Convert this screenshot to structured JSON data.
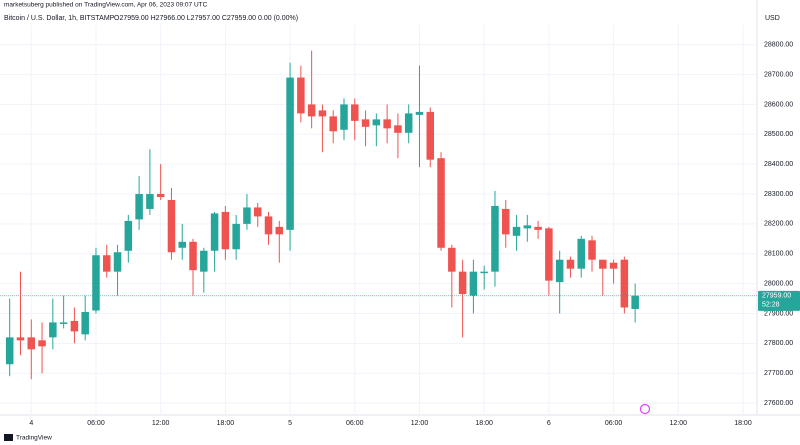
{
  "chart_data": {
    "type": "candlestick",
    "publisher": "marketsuberg published on TradingView.com, Apr 06, 2023 09:07 UTC",
    "title": "Bitcoin / U.S. Dollar, 1h, BITSTAMP",
    "legend_ohlc": "O27959.00 H27966.00 L27957.00 C27959.00 0.00 (0.00%)",
    "currency": "USD",
    "brand": "TradingView",
    "up_color": "#26a69a",
    "down_color": "#ef5350",
    "last_price": {
      "value": 27959,
      "label": "27959.00"
    },
    "countdown": "52:28",
    "xlim": [
      -2.9,
      67.3
    ],
    "ylim": [
      27560,
      28866
    ],
    "xticks": [
      {
        "value": 0,
        "label": "4"
      },
      {
        "value": 6,
        "label": "06:00"
      },
      {
        "value": 12,
        "label": "12:00"
      },
      {
        "value": 18,
        "label": "18:00"
      },
      {
        "value": 24,
        "label": "5"
      },
      {
        "value": 30,
        "label": "06:00"
      },
      {
        "value": 36,
        "label": "12:00"
      },
      {
        "value": 42,
        "label": "18:00"
      },
      {
        "value": 48,
        "label": "6"
      },
      {
        "value": 54,
        "label": "06:00"
      },
      {
        "value": 60,
        "label": "12:00"
      },
      {
        "value": 66,
        "label": "18:00"
      }
    ],
    "yticks": [
      {
        "value": 27600,
        "label": "27600.00"
      },
      {
        "value": 27700,
        "label": "27700.00"
      },
      {
        "value": 27800,
        "label": "27800.00"
      },
      {
        "value": 27900,
        "label": "27900.00"
      },
      {
        "value": 28000,
        "label": "28000.00"
      },
      {
        "value": 28100,
        "label": "28100.00"
      },
      {
        "value": 28200,
        "label": "28200.00"
      },
      {
        "value": 28300,
        "label": "28300.00"
      },
      {
        "value": 28400,
        "label": "28400.00"
      },
      {
        "value": 28500,
        "label": "28500.00"
      },
      {
        "value": 28600,
        "label": "28600.00"
      },
      {
        "value": 28700,
        "label": "28700.00"
      },
      {
        "value": 28800,
        "label": "28800.00"
      }
    ],
    "x": [
      -2,
      -1,
      0,
      1,
      2,
      3,
      4,
      5,
      6,
      7,
      8,
      9,
      10,
      11,
      12,
      13,
      14,
      15,
      16,
      17,
      18,
      19,
      20,
      21,
      22,
      23,
      24,
      25,
      26,
      27,
      28,
      29,
      30,
      31,
      32,
      33,
      34,
      35,
      36,
      37,
      38,
      39,
      40,
      41,
      42,
      43,
      44,
      45,
      46,
      47,
      48,
      49,
      50,
      51,
      52,
      53,
      54,
      55,
      56
    ],
    "open": [
      27730,
      27820,
      27820,
      27810,
      27820,
      27865,
      27875,
      27830,
      27910,
      28095,
      28040,
      28110,
      28215,
      28250,
      28300,
      28280,
      28120,
      28140,
      28040,
      28110,
      28240,
      28115,
      28200,
      28255,
      28225,
      28190,
      28180,
      28690,
      28600,
      28580,
      28560,
      28515,
      28600,
      28550,
      28530,
      28550,
      28530,
      28505,
      28565,
      28575,
      28420,
      28120,
      28040,
      27960,
      28035,
      28040,
      28250,
      28160,
      28185,
      28190,
      28185,
      28005,
      28080,
      28050,
      28145,
      28080,
      28070,
      28080,
      27915
    ],
    "high": [
      27950,
      28040,
      27880,
      27870,
      27950,
      27960,
      27920,
      27960,
      28120,
      28130,
      28130,
      28230,
      28360,
      28450,
      28400,
      28320,
      28200,
      28150,
      28120,
      28240,
      28260,
      28230,
      28300,
      28270,
      28240,
      28210,
      28740,
      28730,
      28780,
      28600,
      28580,
      28620,
      28620,
      28580,
      28570,
      28600,
      28570,
      28600,
      28730,
      28590,
      28440,
      28130,
      28080,
      28080,
      28060,
      28310,
      28280,
      28230,
      28230,
      28210,
      28190,
      28110,
      28090,
      28160,
      28160,
      28080,
      28080,
      28090,
      28000
    ],
    "low": [
      27690,
      27760,
      27680,
      27700,
      27780,
      27850,
      27800,
      27810,
      27900,
      28020,
      27960,
      28070,
      28180,
      28230,
      28280,
      28080,
      28080,
      27960,
      27970,
      28040,
      28080,
      28080,
      28180,
      28190,
      28130,
      28070,
      28110,
      28540,
      28520,
      28440,
      28470,
      28480,
      28480,
      28460,
      28460,
      28470,
      28420,
      28470,
      28390,
      28390,
      28110,
      27920,
      27820,
      27900,
      27980,
      27990,
      28120,
      28110,
      28140,
      28150,
      27960,
      27900,
      28020,
      28020,
      28040,
      27960,
      28000,
      27900,
      27870
    ],
    "close": [
      27820,
      27810,
      27780,
      27790,
      27870,
      27870,
      27840,
      27905,
      28095,
      28040,
      28105,
      28210,
      28300,
      28300,
      28290,
      28105,
      28140,
      28045,
      28110,
      28235,
      28115,
      28200,
      28255,
      28225,
      28165,
      28165,
      28690,
      28570,
      28560,
      28560,
      28510,
      28600,
      28545,
      28525,
      28550,
      28520,
      28505,
      28570,
      28575,
      28415,
      28120,
      28040,
      27965,
      28040,
      28040,
      28260,
      28165,
      28190,
      28195,
      28180,
      28010,
      28080,
      28050,
      28150,
      28080,
      28050,
      28050,
      27920,
      27960
    ]
  }
}
